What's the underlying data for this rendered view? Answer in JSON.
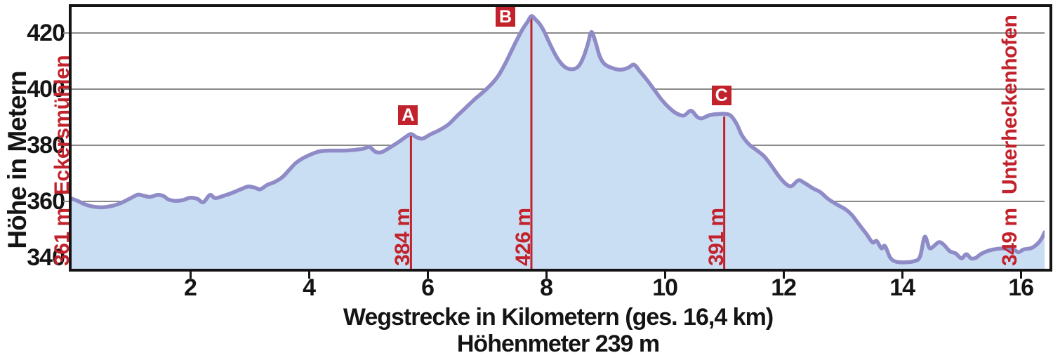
{
  "colors": {
    "profile_line": "#8f8bc7",
    "profile_fill": "#cadef3",
    "marker_red": "#c2222b",
    "grid": "#8a8a8a",
    "frame": "#141414",
    "text": "#141414"
  },
  "chart_data": {
    "type": "area",
    "title": "",
    "xlabel": "Wegstrecke in Kilometern (ges. 16,4 km)",
    "xlabel_line2": "Höhenmeter 239 m",
    "ylabel": "Höhe in Metern",
    "x_unit": "km",
    "y_unit": "m",
    "xlim": [
      0,
      16.4
    ],
    "ylim": [
      336,
      429.25
    ],
    "x_ticks": [
      2,
      4,
      6,
      8,
      10,
      12,
      14,
      16
    ],
    "y_ticks": [
      340,
      360,
      380,
      400,
      420
    ],
    "y_gridlines": [
      360,
      380,
      400,
      420
    ],
    "grid": "horizontal-only",
    "total_distance_km": "16,4",
    "total_climb_m": 239,
    "start_point": {
      "name": "Eckersmühlen",
      "elevation_m": 361,
      "elevation_label": "361 m"
    },
    "end_point": {
      "name": "Unterheckenhofen",
      "elevation_m": 349,
      "elevation_label": "349 m"
    },
    "markers": [
      {
        "id": "A",
        "km": 5.72,
        "elevation_m": 384,
        "elevation_label": "384 m"
      },
      {
        "id": "B",
        "km": 7.75,
        "elevation_m": 426,
        "elevation_label": "426 m"
      },
      {
        "id": "C",
        "km": 11.0,
        "elevation_m": 391,
        "elevation_label": "391 m"
      }
    ],
    "profile": [
      [
        0,
        361
      ],
      [
        0.1,
        360.2
      ],
      [
        0.22,
        359
      ],
      [
        0.35,
        358.2
      ],
      [
        0.48,
        357.9
      ],
      [
        0.6,
        358.1
      ],
      [
        0.72,
        358.6
      ],
      [
        0.85,
        359.6
      ],
      [
        1.0,
        361.2
      ],
      [
        1.12,
        362.4
      ],
      [
        1.22,
        362
      ],
      [
        1.32,
        361.6
      ],
      [
        1.45,
        362.3
      ],
      [
        1.55,
        361.9
      ],
      [
        1.63,
        360.7
      ],
      [
        1.75,
        360.2
      ],
      [
        1.88,
        360.5
      ],
      [
        2.0,
        361.3
      ],
      [
        2.12,
        360.9
      ],
      [
        2.22,
        359.7
      ],
      [
        2.33,
        362.3
      ],
      [
        2.42,
        361.2
      ],
      [
        2.55,
        361.9
      ],
      [
        2.7,
        363
      ],
      [
        2.85,
        364.3
      ],
      [
        2.98,
        365.3
      ],
      [
        3.1,
        364.8
      ],
      [
        3.18,
        364.3
      ],
      [
        3.3,
        365.9
      ],
      [
        3.42,
        366.9
      ],
      [
        3.55,
        368.6
      ],
      [
        3.68,
        371.5
      ],
      [
        3.78,
        373.7
      ],
      [
        3.9,
        375.4
      ],
      [
        4.05,
        376.9
      ],
      [
        4.2,
        377.9
      ],
      [
        4.4,
        378.1
      ],
      [
        4.6,
        378.1
      ],
      [
        4.75,
        378.3
      ],
      [
        4.92,
        378.8
      ],
      [
        5.02,
        379.4
      ],
      [
        5.12,
        377.7
      ],
      [
        5.22,
        377.5
      ],
      [
        5.35,
        379
      ],
      [
        5.5,
        381
      ],
      [
        5.62,
        382.8
      ],
      [
        5.72,
        384
      ],
      [
        5.82,
        382.8
      ],
      [
        5.92,
        382.4
      ],
      [
        6.05,
        383.9
      ],
      [
        6.2,
        385.4
      ],
      [
        6.35,
        387.4
      ],
      [
        6.5,
        390.5
      ],
      [
        6.65,
        393.5
      ],
      [
        6.8,
        396.5
      ],
      [
        6.95,
        399.2
      ],
      [
        7.1,
        402.3
      ],
      [
        7.2,
        405
      ],
      [
        7.3,
        408.7
      ],
      [
        7.4,
        413
      ],
      [
        7.5,
        417.3
      ],
      [
        7.6,
        421.3
      ],
      [
        7.68,
        423.8
      ],
      [
        7.75,
        426
      ],
      [
        7.82,
        424.8
      ],
      [
        7.9,
        422.9
      ],
      [
        7.98,
        419.9
      ],
      [
        8.08,
        415.3
      ],
      [
        8.2,
        410.6
      ],
      [
        8.32,
        407.8
      ],
      [
        8.45,
        407.1
      ],
      [
        8.55,
        408.3
      ],
      [
        8.63,
        411.5
      ],
      [
        8.7,
        416
      ],
      [
        8.76,
        420.3
      ],
      [
        8.82,
        417.5
      ],
      [
        8.9,
        411.8
      ],
      [
        8.98,
        409
      ],
      [
        9.1,
        407.6
      ],
      [
        9.25,
        406.9
      ],
      [
        9.38,
        407.6
      ],
      [
        9.48,
        408.7
      ],
      [
        9.58,
        406.3
      ],
      [
        9.7,
        403.2
      ],
      [
        9.82,
        399.8
      ],
      [
        9.95,
        396.1
      ],
      [
        10.08,
        393.2
      ],
      [
        10.2,
        391.3
      ],
      [
        10.32,
        390.6
      ],
      [
        10.44,
        392.3
      ],
      [
        10.54,
        390.2
      ],
      [
        10.62,
        389.6
      ],
      [
        10.75,
        390.7
      ],
      [
        10.88,
        391.1
      ],
      [
        11.0,
        391.2
      ],
      [
        11.1,
        390.7
      ],
      [
        11.2,
        388
      ],
      [
        11.3,
        383.5
      ],
      [
        11.42,
        380.3
      ],
      [
        11.55,
        378.2
      ],
      [
        11.68,
        375.9
      ],
      [
        11.8,
        372.6
      ],
      [
        11.92,
        369
      ],
      [
        12.03,
        366.4
      ],
      [
        12.13,
        365.4
      ],
      [
        12.25,
        367.5
      ],
      [
        12.35,
        366.6
      ],
      [
        12.5,
        364.6
      ],
      [
        12.62,
        363.3
      ],
      [
        12.75,
        360.9
      ],
      [
        12.9,
        358.9
      ],
      [
        13.05,
        357.1
      ],
      [
        13.15,
        355.2
      ],
      [
        13.28,
        351.6
      ],
      [
        13.4,
        348.3
      ],
      [
        13.5,
        345.4
      ],
      [
        13.57,
        345.9
      ],
      [
        13.65,
        343.3
      ],
      [
        13.71,
        344.1
      ],
      [
        13.8,
        339.9
      ],
      [
        13.9,
        338.5
      ],
      [
        14.05,
        338.3
      ],
      [
        14.2,
        338.7
      ],
      [
        14.3,
        340.3
      ],
      [
        14.38,
        347.4
      ],
      [
        14.46,
        343.4
      ],
      [
        14.54,
        344.2
      ],
      [
        14.62,
        345.5
      ],
      [
        14.7,
        344.6
      ],
      [
        14.8,
        342.3
      ],
      [
        14.9,
        341.5
      ],
      [
        15.0,
        339.7
      ],
      [
        15.08,
        341.2
      ],
      [
        15.16,
        339.7
      ],
      [
        15.24,
        339.9
      ],
      [
        15.33,
        341.3
      ],
      [
        15.45,
        342.4
      ],
      [
        15.6,
        343.1
      ],
      [
        15.75,
        343.2
      ],
      [
        15.88,
        342.9
      ],
      [
        15.96,
        341.9
      ],
      [
        16.05,
        342.9
      ],
      [
        16.18,
        343.4
      ],
      [
        16.28,
        344.9
      ],
      [
        16.35,
        346.8
      ],
      [
        16.4,
        349
      ]
    ]
  }
}
